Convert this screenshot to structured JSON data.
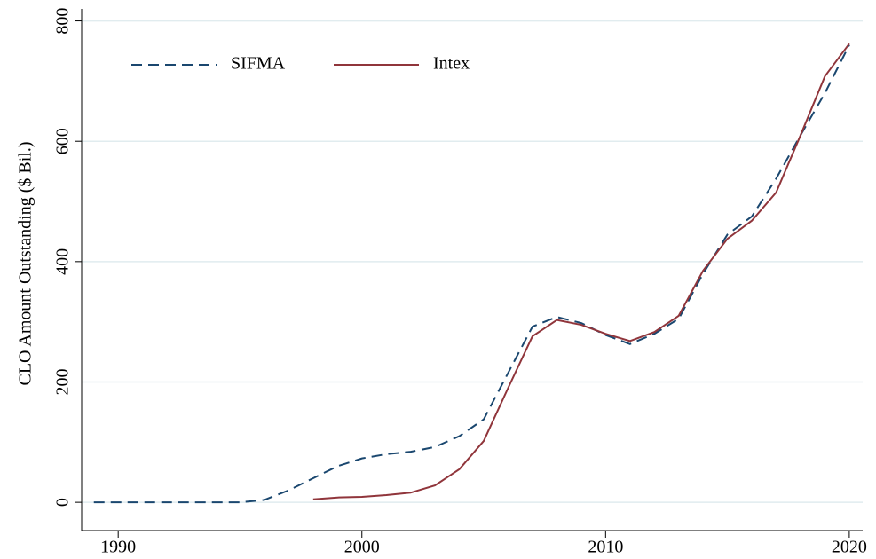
{
  "chart_data": {
    "type": "line",
    "ylabel": "CLO Amount Outstanding ($ Bil.)",
    "xlim": [
      1988.5,
      2020.55
    ],
    "xticks": [
      1990,
      2000,
      2010,
      2020
    ],
    "ylim": [
      -47,
      820
    ],
    "yticks": [
      0,
      200,
      400,
      600,
      800
    ],
    "grid": true,
    "legend": "top-left",
    "series": [
      {
        "name": "SIFMA",
        "color": "#1a476f",
        "dash": true,
        "x": [
          1989,
          1990,
          1991,
          1992,
          1993,
          1994,
          1995,
          1996,
          1997,
          1998,
          1999,
          2000,
          2001,
          2002,
          2003,
          2004,
          2005,
          2006,
          2007,
          2008,
          2009,
          2010,
          2011,
          2012,
          2013,
          2014,
          2015,
          2016,
          2017,
          2018,
          2019,
          2020
        ],
        "values": [
          0,
          0,
          0,
          0,
          0,
          0,
          0,
          4,
          20,
          40,
          60,
          73,
          80,
          84,
          92,
          110,
          138,
          215,
          292,
          308,
          298,
          278,
          263,
          280,
          305,
          380,
          445,
          475,
          538,
          610,
          680,
          760
        ]
      },
      {
        "name": "Intex",
        "color": "#90353b",
        "dash": false,
        "x": [
          1998,
          1999,
          2000,
          2001,
          2002,
          2003,
          2004,
          2005,
          2006,
          2007,
          2008,
          2009,
          2010,
          2011,
          2012,
          2013,
          2014,
          2015,
          2016,
          2017,
          2018,
          2019,
          2020
        ],
        "values": [
          5,
          8,
          9,
          12,
          16,
          28,
          55,
          102,
          190,
          276,
          303,
          295,
          280,
          268,
          283,
          310,
          385,
          438,
          468,
          515,
          610,
          708,
          762
        ]
      }
    ]
  }
}
